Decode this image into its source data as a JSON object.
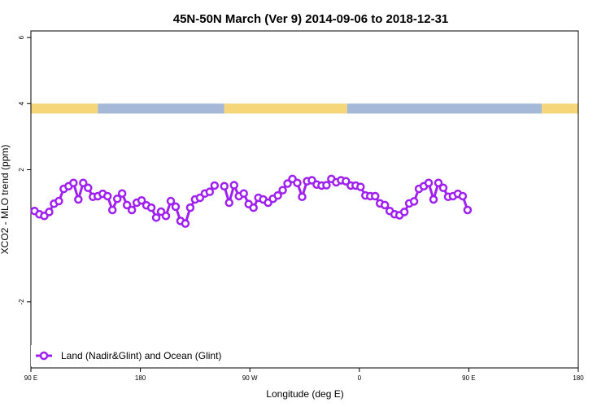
{
  "chart_data": {
    "type": "line",
    "title": "45N-50N March (Ver 9)   2014-09-06 to 2018-12-31",
    "xlabel": "Longitude (deg E)",
    "ylabel": "XCO2 - MLO trend (ppm)",
    "xlim": [
      90,
      450
    ],
    "ylim": [
      -4.0,
      6.2
    ],
    "x_ticks": [
      {
        "value": 90,
        "label": "90 E"
      },
      {
        "value": 180,
        "label": "180"
      },
      {
        "value": 270,
        "label": "90 W"
      },
      {
        "value": 360,
        "label": "0"
      },
      {
        "value": 450,
        "label": "90 E"
      },
      {
        "value": 540,
        "label": "180"
      }
    ],
    "y_ticks": [
      {
        "value": -2,
        "label": "-2"
      },
      {
        "value": 2,
        "label": "2"
      },
      {
        "value": 4,
        "label": "4"
      },
      {
        "value": 6,
        "label": "6"
      }
    ],
    "land_ocean_strip": {
      "y_range": [
        3.7,
        4.0
      ],
      "land_color": "#f5d77a",
      "ocean_color": "#a6b8d8",
      "segments": [
        {
          "from": 90,
          "to": 145,
          "type": "land"
        },
        {
          "from": 145,
          "to": 249,
          "type": "ocean"
        },
        {
          "from": 249,
          "to": 350,
          "type": "land"
        },
        {
          "from": 350,
          "to": 510,
          "type": "ocean"
        },
        {
          "from": 510,
          "to": 540,
          "type": "land"
        }
      ]
    },
    "series": [
      {
        "name": "Land (Nadir&Glint) and Ocean (Glint)",
        "color": "#a020f0",
        "x": [
          93,
          97,
          101,
          105,
          109,
          113,
          117,
          121,
          125,
          129,
          133,
          137,
          141,
          145,
          149,
          153,
          157,
          161,
          165,
          169,
          173,
          177,
          181,
          185,
          189,
          193,
          197,
          201,
          205,
          209,
          213,
          217,
          221,
          225,
          229,
          233,
          237,
          241,
          245,
          249,
          253,
          257,
          261,
          265,
          269,
          273,
          277,
          281
        ],
        "y": [
          0.75,
          0.65,
          0.6,
          0.72,
          0.97,
          1.05,
          1.42,
          1.5,
          1.6,
          1.1,
          1.6,
          1.45,
          1.18,
          1.2,
          1.27,
          1.2,
          0.78,
          1.12,
          1.28,
          0.93,
          0.78,
          1.0,
          1.07,
          0.92,
          0.85,
          0.55,
          0.73,
          0.6,
          1.05,
          0.88,
          0.45,
          0.37,
          0.85,
          1.1,
          1.15,
          1.28,
          1.33,
          1.52,
          null,
          1.5,
          1.0,
          1.53,
          1.2,
          1.28,
          0.96,
          0.85,
          1.15,
          1.1
        ]
      }
    ],
    "series_cont": [
      {
        "x": [
          285,
          289,
          293,
          297,
          301,
          305,
          309,
          313,
          317,
          321,
          325,
          329,
          333,
          337,
          341,
          345,
          349,
          353,
          357,
          361,
          365,
          369,
          373,
          377,
          381,
          385,
          389,
          393,
          397,
          401,
          405,
          409,
          413,
          417,
          421,
          425,
          429,
          433,
          437,
          441,
          445,
          449
        ],
        "y": [
          1.0,
          1.12,
          1.22,
          1.38,
          1.58,
          1.72,
          1.6,
          1.18,
          1.65,
          1.68,
          1.55,
          1.52,
          1.53,
          1.72,
          1.62,
          1.68,
          1.65,
          1.52,
          1.52,
          1.48,
          1.22,
          1.2,
          1.2,
          0.98,
          0.93,
          0.75,
          0.65,
          0.62,
          0.72,
          0.98,
          1.04,
          1.42,
          1.5,
          1.6,
          1.1,
          1.6,
          1.45,
          1.18,
          1.2,
          1.27,
          1.2,
          0.78
        ]
      }
    ],
    "legend": {
      "placement": "bottom-left"
    },
    "grid": false
  }
}
